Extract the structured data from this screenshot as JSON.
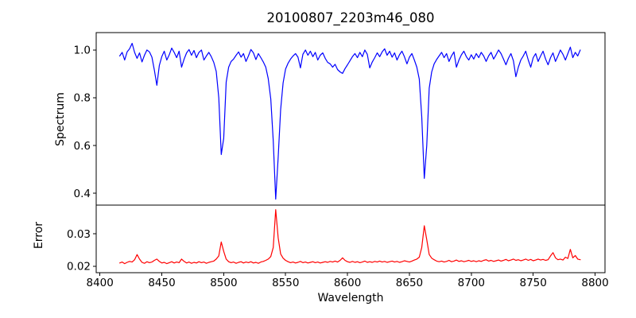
{
  "chart_data": {
    "type": "line",
    "title": "20100807_2203m46_080",
    "xlabel": "Wavelength",
    "x_start": 8416,
    "x_step": 2,
    "xlim": [
      8397,
      8808
    ],
    "x_ticks": [
      8400,
      8450,
      8500,
      8550,
      8600,
      8650,
      8700,
      8750,
      8800
    ],
    "x_tick_labels": [
      "8400",
      "8450",
      "8500",
      "8550",
      "8600",
      "8650",
      "8700",
      "8750",
      "8800"
    ],
    "grid": false,
    "legend": "none",
    "panels": [
      {
        "name": "spectrum",
        "ylabel": "Spectrum",
        "color": "#0000ff",
        "ylim": [
          0.35,
          1.073
        ],
        "y_ticks": [
          0.4,
          0.6,
          0.8,
          1.0
        ],
        "y_tick_labels": [
          "0.4",
          "0.6",
          "0.8",
          "1.0"
        ],
        "features": "Ca II triplet absorption lines near 8498, 8542, 8662; continuum ~1.0",
        "values": [
          0.975,
          0.99,
          0.958,
          0.992,
          1.005,
          1.028,
          0.99,
          0.965,
          0.988,
          0.95,
          0.978,
          1.0,
          0.992,
          0.97,
          0.915,
          0.852,
          0.935,
          0.972,
          0.995,
          0.958,
          0.98,
          1.008,
          0.99,
          0.968,
          0.995,
          0.928,
          0.962,
          0.988,
          1.002,
          0.978,
          0.998,
          0.968,
          0.99,
          1.0,
          0.958,
          0.975,
          0.99,
          0.972,
          0.948,
          0.91,
          0.8,
          0.562,
          0.63,
          0.865,
          0.928,
          0.952,
          0.962,
          0.978,
          0.992,
          0.97,
          0.985,
          0.952,
          0.975,
          1.002,
          0.988,
          0.96,
          0.985,
          0.968,
          0.95,
          0.928,
          0.88,
          0.795,
          0.62,
          0.375,
          0.55,
          0.75,
          0.862,
          0.92,
          0.945,
          0.962,
          0.975,
          0.985,
          0.97,
          0.925,
          0.982,
          1.0,
          0.978,
          0.995,
          0.972,
          0.99,
          0.958,
          0.978,
          0.988,
          0.965,
          0.948,
          0.942,
          0.928,
          0.94,
          0.918,
          0.908,
          0.902,
          0.922,
          0.938,
          0.955,
          0.972,
          0.985,
          0.968,
          0.99,
          0.972,
          1.0,
          0.982,
          0.925,
          0.95,
          0.968,
          0.988,
          0.972,
          0.992,
          1.005,
          0.978,
          0.995,
          0.97,
          0.988,
          0.958,
          0.98,
          0.995,
          0.972,
          0.942,
          0.97,
          0.985,
          0.958,
          0.928,
          0.878,
          0.72,
          0.462,
          0.6,
          0.84,
          0.908,
          0.942,
          0.96,
          0.975,
          0.99,
          0.968,
          0.985,
          0.952,
          0.975,
          0.992,
          0.928,
          0.958,
          0.98,
          0.995,
          0.972,
          0.958,
          0.98,
          0.962,
          0.985,
          0.968,
          0.99,
          0.975,
          0.952,
          0.975,
          0.99,
          0.962,
          0.98,
          1.0,
          0.985,
          0.962,
          0.938,
          0.965,
          0.985,
          0.955,
          0.888,
          0.928,
          0.958,
          0.975,
          0.995,
          0.958,
          0.928,
          0.968,
          0.985,
          0.952,
          0.975,
          0.995,
          0.962,
          0.938,
          0.968,
          0.988,
          0.952,
          0.975,
          1.0,
          0.982,
          0.958,
          0.985,
          1.012,
          0.968,
          0.99,
          0.975,
          1.0
        ]
      },
      {
        "name": "error",
        "ylabel": "Error",
        "color": "#ff0000",
        "ylim": [
          0.018,
          0.0389
        ],
        "y_ticks": [
          0.02,
          0.03
        ],
        "y_tick_labels": [
          "0.02",
          "0.03"
        ],
        "features": "baseline ~0.021 rising slightly to right; spikes at 8498, 8542 (max ~0.0375), 8662",
        "values": [
          0.021,
          0.0213,
          0.0208,
          0.0212,
          0.0215,
          0.0213,
          0.022,
          0.0236,
          0.0222,
          0.0212,
          0.0209,
          0.0214,
          0.0211,
          0.0213,
          0.0218,
          0.0222,
          0.0215,
          0.021,
          0.0212,
          0.0208,
          0.0211,
          0.0214,
          0.021,
          0.0213,
          0.0211,
          0.0222,
          0.0215,
          0.021,
          0.0213,
          0.0209,
          0.0212,
          0.021,
          0.0214,
          0.0211,
          0.0213,
          0.0209,
          0.0212,
          0.0214,
          0.0216,
          0.0222,
          0.0232,
          0.0275,
          0.0246,
          0.0222,
          0.0214,
          0.0211,
          0.0213,
          0.0209,
          0.0212,
          0.0214,
          0.021,
          0.0213,
          0.0211,
          0.0214,
          0.021,
          0.0212,
          0.0209,
          0.0213,
          0.0215,
          0.0218,
          0.0222,
          0.023,
          0.0258,
          0.0375,
          0.0288,
          0.0238,
          0.0225,
          0.0218,
          0.0214,
          0.0211,
          0.0213,
          0.021,
          0.0212,
          0.0215,
          0.0211,
          0.0213,
          0.021,
          0.0212,
          0.0214,
          0.0211,
          0.0213,
          0.021,
          0.0212,
          0.0214,
          0.0212,
          0.0215,
          0.0213,
          0.0216,
          0.0213,
          0.0218,
          0.0226,
          0.0218,
          0.0214,
          0.0212,
          0.0215,
          0.0212,
          0.0214,
          0.0211,
          0.0213,
          0.0216,
          0.0212,
          0.0214,
          0.0212,
          0.0215,
          0.0213,
          0.0216,
          0.0213,
          0.0215,
          0.0212,
          0.0214,
          0.0216,
          0.0213,
          0.0215,
          0.0212,
          0.0214,
          0.0217,
          0.0215,
          0.0213,
          0.0216,
          0.0219,
          0.0222,
          0.0228,
          0.0258,
          0.0325,
          0.0282,
          0.0236,
          0.0225,
          0.022,
          0.0216,
          0.0214,
          0.0216,
          0.0213,
          0.0215,
          0.0218,
          0.0214,
          0.0216,
          0.0219,
          0.0215,
          0.0217,
          0.0214,
          0.0216,
          0.0218,
          0.0215,
          0.0217,
          0.0214,
          0.0217,
          0.0215,
          0.0218,
          0.022,
          0.0216,
          0.0218,
          0.0215,
          0.0217,
          0.0219,
          0.0216,
          0.0218,
          0.0221,
          0.0217,
          0.0219,
          0.0222,
          0.0218,
          0.022,
          0.0217,
          0.0219,
          0.0222,
          0.0218,
          0.0221,
          0.0217,
          0.0219,
          0.0222,
          0.0219,
          0.0221,
          0.0218,
          0.022,
          0.0232,
          0.0242,
          0.0226,
          0.022,
          0.0222,
          0.0219,
          0.0228,
          0.0224,
          0.0252,
          0.0226,
          0.0233,
          0.0222,
          0.022
        ]
      }
    ]
  }
}
